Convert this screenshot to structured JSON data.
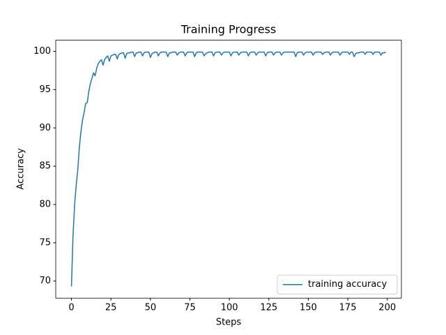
{
  "chart_data": {
    "type": "line",
    "title": "Training Progress",
    "xlabel": "Steps",
    "ylabel": "Accuracy",
    "x": [
      0,
      1,
      2,
      3,
      4,
      5,
      6,
      7,
      8,
      9,
      10,
      11,
      12,
      13,
      14,
      15,
      16,
      17,
      18,
      19,
      20,
      21,
      22,
      23,
      24,
      25,
      26,
      27,
      28,
      29,
      30,
      31,
      32,
      33,
      34,
      35,
      36,
      37,
      38,
      39,
      40,
      41,
      42,
      43,
      44,
      45,
      46,
      47,
      48,
      49,
      50,
      51,
      52,
      53,
      54,
      55,
      56,
      57,
      58,
      59,
      60,
      61,
      62,
      63,
      64,
      65,
      66,
      67,
      68,
      69,
      70,
      71,
      72,
      73,
      74,
      75,
      76,
      77,
      78,
      79,
      80,
      81,
      82,
      83,
      84,
      85,
      86,
      87,
      88,
      89,
      90,
      91,
      92,
      93,
      94,
      95,
      96,
      97,
      98,
      99,
      100,
      101,
      102,
      103,
      104,
      105,
      106,
      107,
      108,
      109,
      110,
      111,
      112,
      113,
      114,
      115,
      116,
      117,
      118,
      119,
      120,
      121,
      122,
      123,
      124,
      125,
      126,
      127,
      128,
      129,
      130,
      131,
      132,
      133,
      134,
      135,
      136,
      137,
      138,
      139,
      140,
      141,
      142,
      143,
      144,
      145,
      146,
      147,
      148,
      149,
      150,
      151,
      152,
      153,
      154,
      155,
      156,
      157,
      158,
      159,
      160,
      161,
      162,
      163,
      164,
      165,
      166,
      167,
      168,
      169,
      170,
      171,
      172,
      173,
      174,
      175,
      176,
      177,
      178,
      179,
      180,
      181,
      182,
      183,
      184,
      185,
      186,
      187,
      188,
      189,
      190,
      191,
      192,
      193,
      194,
      195,
      196,
      197,
      198,
      199
    ],
    "series": [
      {
        "name": "training accuracy",
        "color": "#1f77b4",
        "values": [
          69.3,
          76,
          80,
          82.5,
          84.5,
          87.5,
          89.5,
          91,
          92,
          93.2,
          93.3,
          94.8,
          95.8,
          96.5,
          97.2,
          96.8,
          97.8,
          98.4,
          98.7,
          98.9,
          98.2,
          98.9,
          99.2,
          99.4,
          98.7,
          99.4,
          99.5,
          99.6,
          99.6,
          99.0,
          99.6,
          99.7,
          99.8,
          99.8,
          99.1,
          99.7,
          99.8,
          99.8,
          99.9,
          99.9,
          99.3,
          99.8,
          99.8,
          99.9,
          99.9,
          99.4,
          99.8,
          99.9,
          99.9,
          99.9,
          99.2,
          99.7,
          99.8,
          99.9,
          99.9,
          99.4,
          99.8,
          99.9,
          99.9,
          99.9,
          99.9,
          99.3,
          99.8,
          99.8,
          99.9,
          99.9,
          99.9,
          99.5,
          99.8,
          99.9,
          99.9,
          99.9,
          99.4,
          99.8,
          99.9,
          99.9,
          99.9,
          99.9,
          99.3,
          99.8,
          99.9,
          99.9,
          99.9,
          99.9,
          99.4,
          99.7,
          99.8,
          99.9,
          99.9,
          99.9,
          99.4,
          99.8,
          99.9,
          99.9,
          99.9,
          99.5,
          99.8,
          99.9,
          99.9,
          99.9,
          99.9,
          99.4,
          99.8,
          99.9,
          99.9,
          99.9,
          99.5,
          99.8,
          99.9,
          99.9,
          99.9,
          99.9,
          99.4,
          99.8,
          99.9,
          99.9,
          99.9,
          99.5,
          99.8,
          99.9,
          99.9,
          99.9,
          99.9,
          99.4,
          99.8,
          99.9,
          99.9,
          99.9,
          99.5,
          99.8,
          99.9,
          99.9,
          99.9,
          99.5,
          99.8,
          99.9,
          99.9,
          99.9,
          99.9,
          99.9,
          99.9,
          99.9,
          99.3,
          99.8,
          99.9,
          99.9,
          99.9,
          99.5,
          99.8,
          99.9,
          99.9,
          99.9,
          99.9,
          99.5,
          99.8,
          99.9,
          99.9,
          99.9,
          99.9,
          99.6,
          99.8,
          99.9,
          99.9,
          99.9,
          99.5,
          99.8,
          99.9,
          99.9,
          99.9,
          99.9,
          99.5,
          99.8,
          99.9,
          99.9,
          99.9,
          99.9,
          99.6,
          99.9,
          99.9,
          99.3,
          99.7,
          99.8,
          99.8,
          99.9,
          99.9,
          99.9,
          99.6,
          99.9,
          99.9,
          99.9,
          99.9,
          99.6,
          99.9,
          99.9,
          99.9,
          99.9,
          99.5,
          99.8,
          99.8,
          99.9
        ]
      }
    ],
    "xlim": [
      -9.95,
      208.95
    ],
    "xticks": [
      0,
      25,
      50,
      75,
      100,
      125,
      150,
      175,
      200
    ],
    "ylim": [
      67.77,
      101.45
    ],
    "yticks": [
      70,
      75,
      80,
      85,
      90,
      95,
      100
    ],
    "legend": "lower right"
  }
}
